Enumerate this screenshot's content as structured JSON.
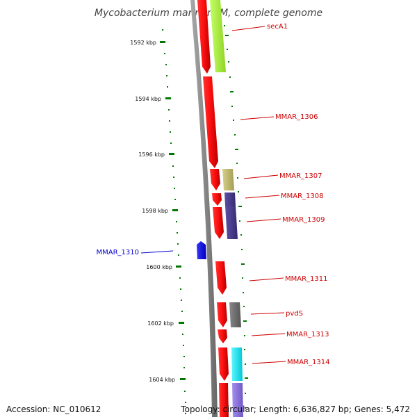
{
  "title": "Mycobacterium marinum M, complete genome",
  "ticks": [
    {
      "label": "1592 kbp",
      "kbp": 1592
    },
    {
      "label": "1594 kbp",
      "kbp": 1594
    },
    {
      "label": "1596 kbp",
      "kbp": 1596
    },
    {
      "label": "1598 kbp",
      "kbp": 1598
    },
    {
      "label": "1600 kbp",
      "kbp": 1600
    },
    {
      "label": "1602 kbp",
      "kbp": 1602
    },
    {
      "label": "1604 kbp",
      "kbp": 1604
    }
  ],
  "labels": [
    {
      "text": "secA1",
      "color": "#cc0000"
    },
    {
      "text": "MMAR_1306",
      "color": "#cc0000"
    },
    {
      "text": "MMAR_1307",
      "color": "#cc0000"
    },
    {
      "text": "MMAR_1308",
      "color": "#cc0000"
    },
    {
      "text": "MMAR_1309",
      "color": "#cc0000"
    },
    {
      "text": "MMAR_1310",
      "color": "#0000cc"
    },
    {
      "text": "MMAR_1311",
      "color": "#cc0000"
    },
    {
      "text": "pvdS",
      "color": "#cc0000"
    },
    {
      "text": "MMAR_1313",
      "color": "#cc0000"
    },
    {
      "text": "MMAR_1314",
      "color": "#cc0000"
    }
  ],
  "colors": {
    "forward_gene": "#ee0000",
    "reverse_gene": "#0000ee",
    "backbone": "#888888",
    "tick": "#007700",
    "cog_secA1": "#a6f23a",
    "cog_1307": "#bdb76b",
    "cog_1308": "#4b3d8c",
    "cog_1309": "#4b3d8c",
    "cog_pvdS": "#666666",
    "cog_1314": "#00e5ee",
    "cog_next": "#8a70d6"
  },
  "footer": {
    "accession": "Accession: NC_010612",
    "stats": "Topology: circular; Length: 6,636,827 bp; Genes: 5,472"
  }
}
